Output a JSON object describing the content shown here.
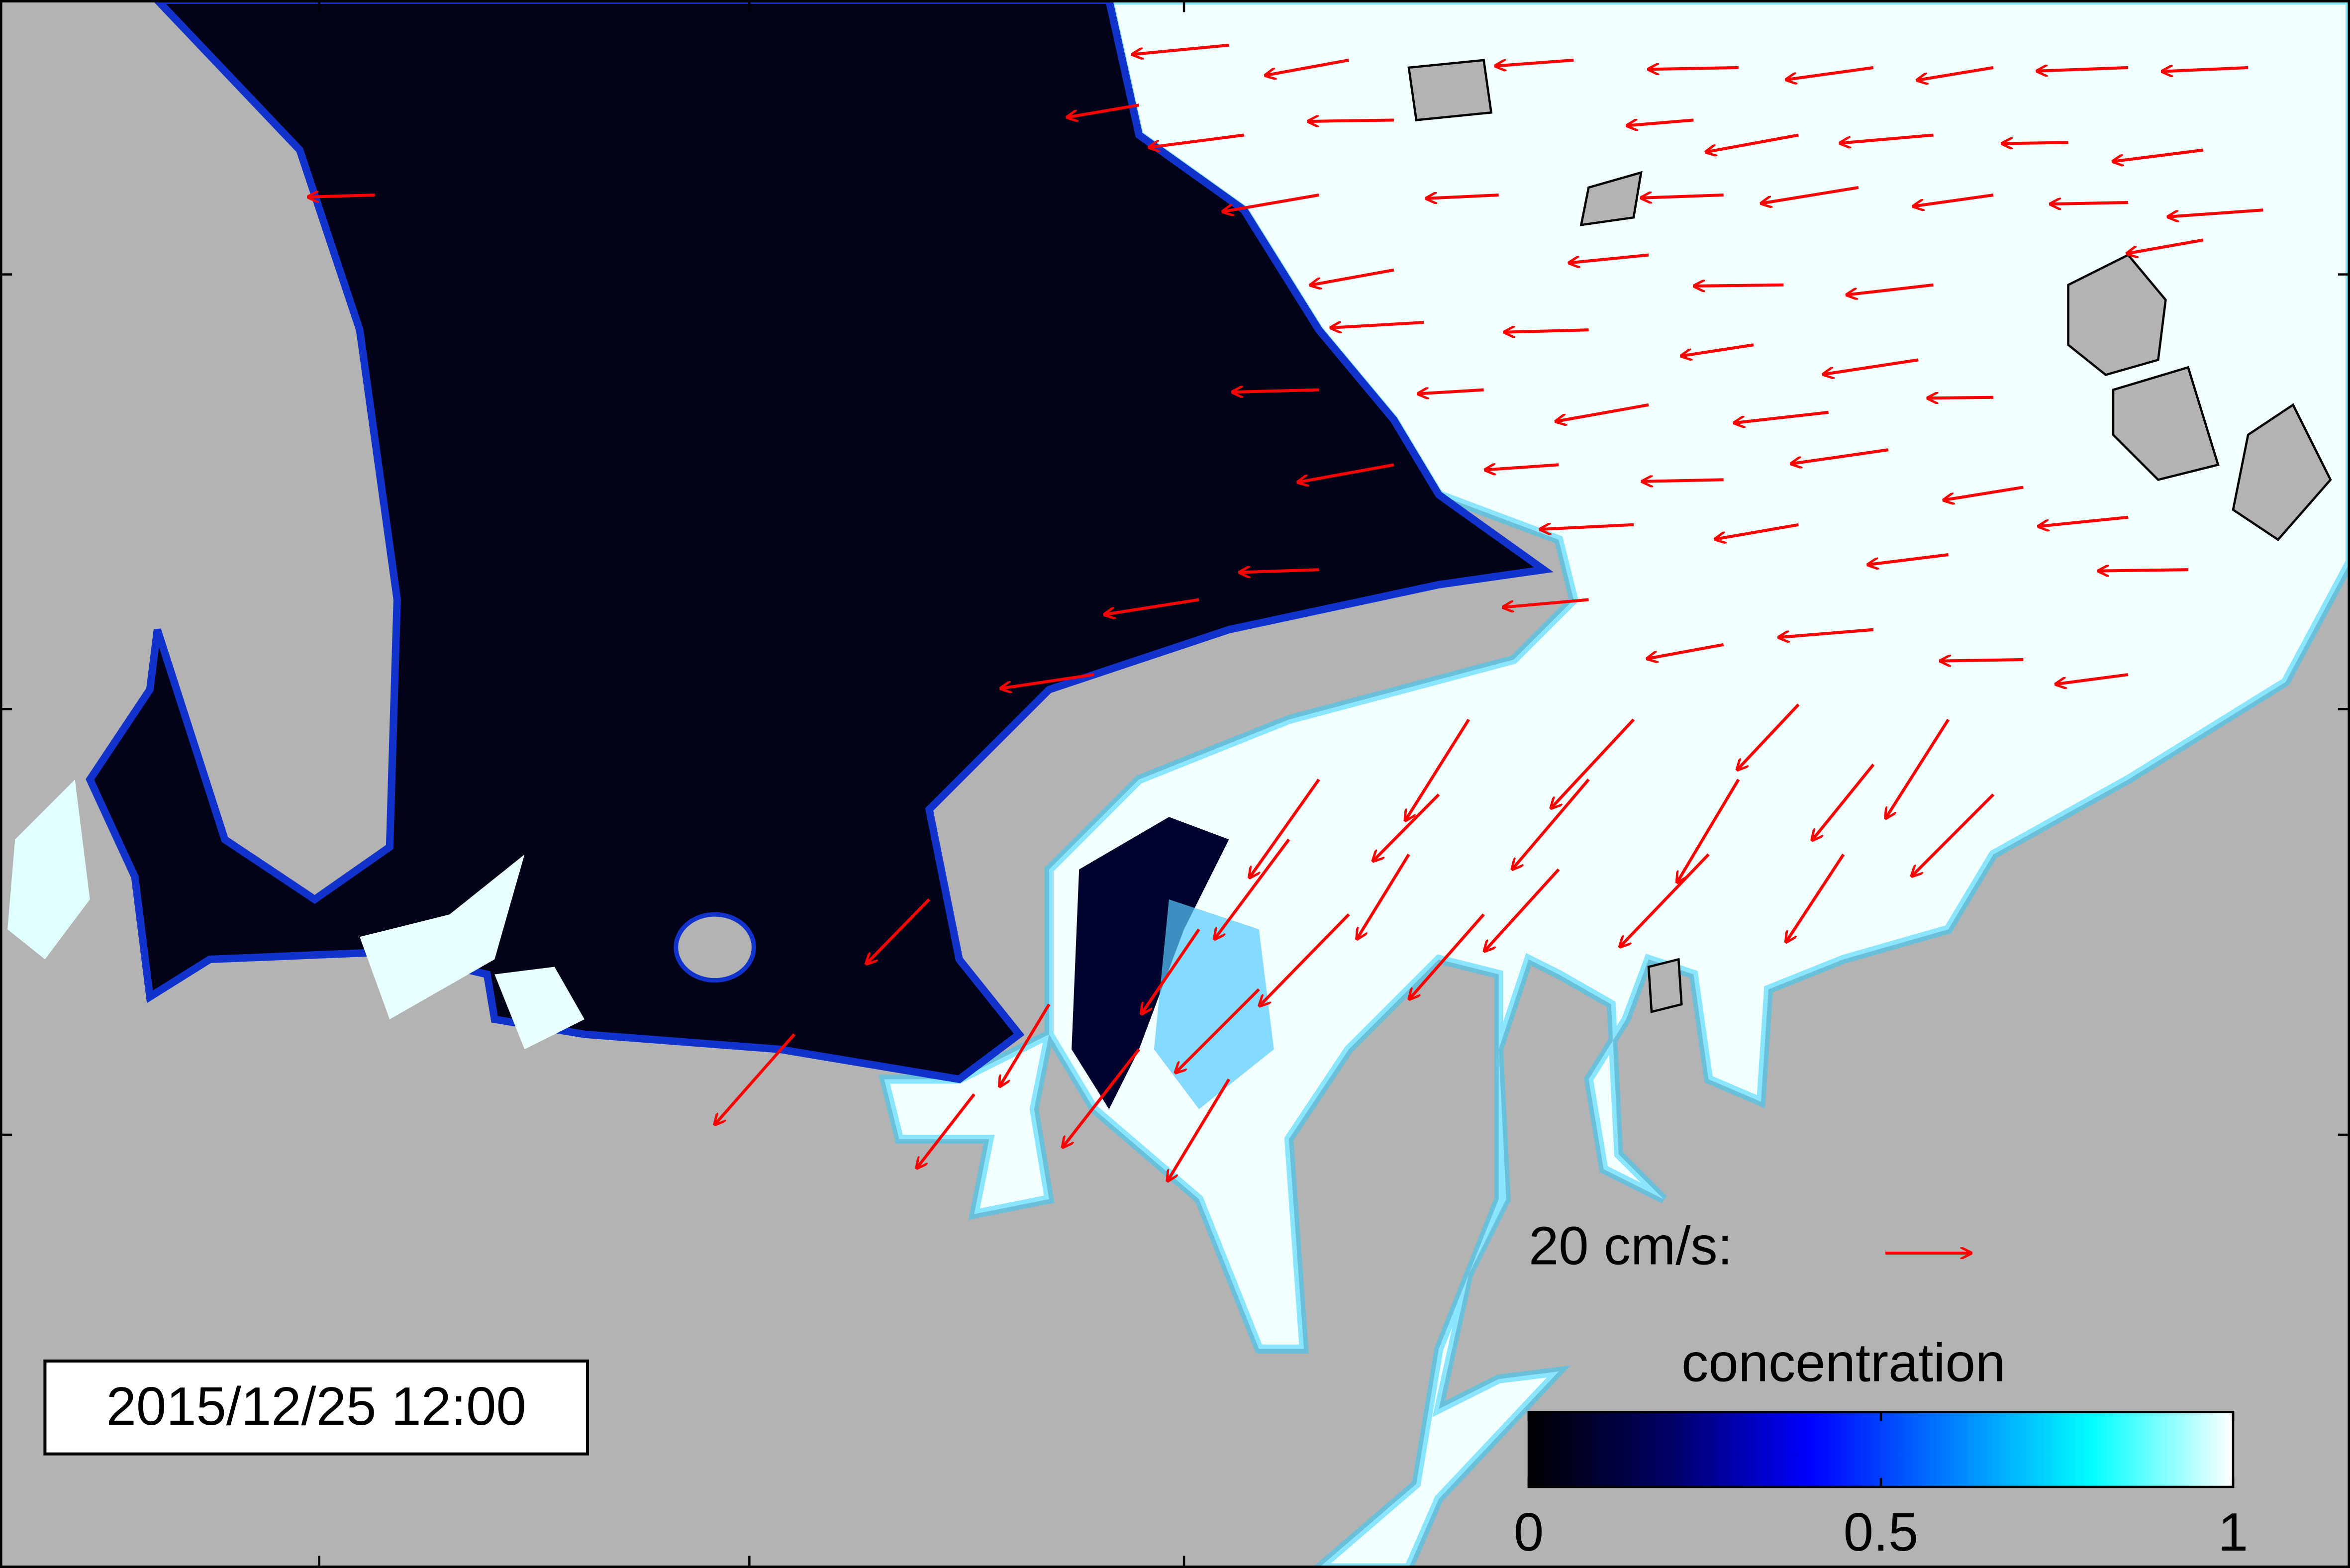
{
  "timestamp": "2015/12/25 12:00",
  "scale_label": "20 cm/s:",
  "colorbar": {
    "label": "concentration",
    "range": [
      0,
      1
    ],
    "ticks": [
      0,
      0.5,
      1
    ]
  }
}
